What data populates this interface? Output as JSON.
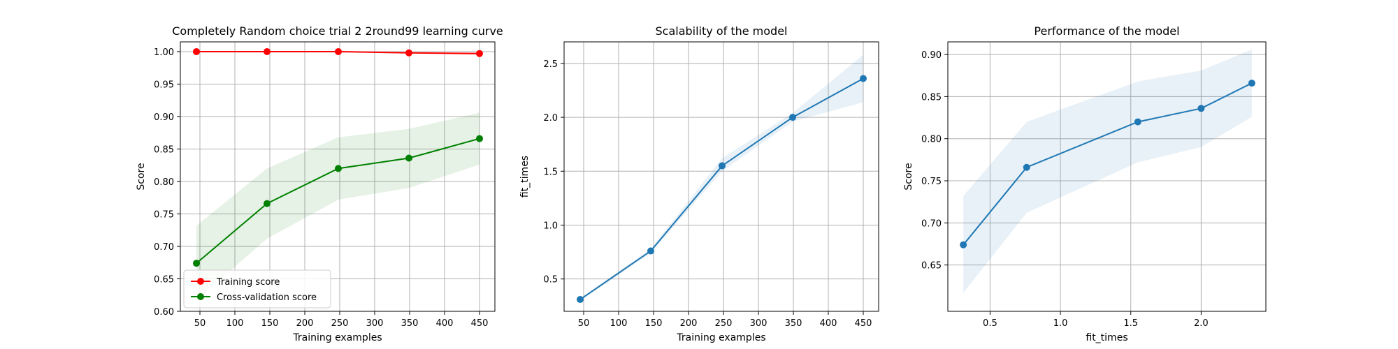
{
  "figure": {
    "background": "#ffffff",
    "grid_color": "#b0b0b0"
  },
  "chart_data": [
    {
      "type": "line",
      "title": "Completely Random choice trial 2 2round99 learning curve",
      "xlabel": "Training examples",
      "ylabel": "Score",
      "xlim": [
        22,
        472
      ],
      "ylim": [
        0.6,
        1.015
      ],
      "xticks": [
        50,
        100,
        150,
        200,
        250,
        300,
        350,
        400,
        450
      ],
      "xtick_labels": [
        "50",
        "100",
        "150",
        "200",
        "250",
        "300",
        "350",
        "400",
        "450"
      ],
      "yticks": [
        0.6,
        0.65,
        0.7,
        0.75,
        0.8,
        0.85,
        0.9,
        0.95,
        1.0
      ],
      "ytick_labels": [
        "0.60",
        "0.65",
        "0.70",
        "0.75",
        "0.80",
        "0.85",
        "0.90",
        "0.95",
        "1.00"
      ],
      "grid": true,
      "legend": "lower-left",
      "series": [
        {
          "name": "Training score",
          "color": "#ff0000",
          "x": [
            45,
            146,
            248,
            349,
            450
          ],
          "values": [
            1.0,
            1.0,
            1.0,
            0.998,
            0.997
          ],
          "band_low": [
            1.0,
            1.0,
            1.0,
            0.997,
            0.995
          ],
          "band_high": [
            1.0,
            1.0,
            1.0,
            0.999,
            0.999
          ]
        },
        {
          "name": "Cross-validation score",
          "color": "#008000",
          "x": [
            45,
            146,
            248,
            349,
            450
          ],
          "values": [
            0.674,
            0.766,
            0.82,
            0.836,
            0.866
          ],
          "band_low": [
            0.617,
            0.712,
            0.772,
            0.79,
            0.826
          ],
          "band_high": [
            0.732,
            0.82,
            0.868,
            0.881,
            0.906
          ]
        }
      ]
    },
    {
      "type": "line",
      "title": "Scalability of the model",
      "xlabel": "Training examples",
      "ylabel": "fit_times",
      "xlim": [
        22,
        472
      ],
      "ylim": [
        0.2,
        2.7
      ],
      "xticks": [
        50,
        100,
        150,
        200,
        250,
        300,
        350,
        400,
        450
      ],
      "xtick_labels": [
        "50",
        "100",
        "150",
        "200",
        "250",
        "300",
        "350",
        "400",
        "450"
      ],
      "yticks": [
        0.5,
        1.0,
        1.5,
        2.0,
        2.5
      ],
      "ytick_labels": [
        "0.5",
        "1.0",
        "1.5",
        "2.0",
        "2.5"
      ],
      "grid": true,
      "series": [
        {
          "color": "#1f77b4",
          "x": [
            45,
            146,
            248,
            349,
            450
          ],
          "values": [
            0.31,
            0.76,
            1.55,
            2.0,
            2.36
          ],
          "band_low": [
            0.3,
            0.74,
            1.5,
            1.96,
            2.14
          ],
          "band_high": [
            0.32,
            0.78,
            1.62,
            2.04,
            2.58
          ]
        }
      ]
    },
    {
      "type": "line",
      "title": "Performance of the model",
      "xlabel": "fit_times",
      "ylabel": "Score",
      "xlim": [
        0.2,
        2.46
      ],
      "ylim": [
        0.595,
        0.915
      ],
      "xticks": [
        0.5,
        1.0,
        1.5,
        2.0
      ],
      "xtick_labels": [
        "0.5",
        "1.0",
        "1.5",
        "2.0"
      ],
      "yticks": [
        0.65,
        0.7,
        0.75,
        0.8,
        0.85,
        0.9
      ],
      "ytick_labels": [
        "0.65",
        "0.70",
        "0.75",
        "0.80",
        "0.85",
        "0.90"
      ],
      "grid": true,
      "series": [
        {
          "color": "#1f77b4",
          "x": [
            0.31,
            0.76,
            1.55,
            2.0,
            2.36
          ],
          "values": [
            0.674,
            0.766,
            0.82,
            0.836,
            0.866
          ],
          "band_low": [
            0.617,
            0.712,
            0.772,
            0.79,
            0.826
          ],
          "band_high": [
            0.732,
            0.82,
            0.868,
            0.881,
            0.906
          ]
        }
      ]
    }
  ]
}
